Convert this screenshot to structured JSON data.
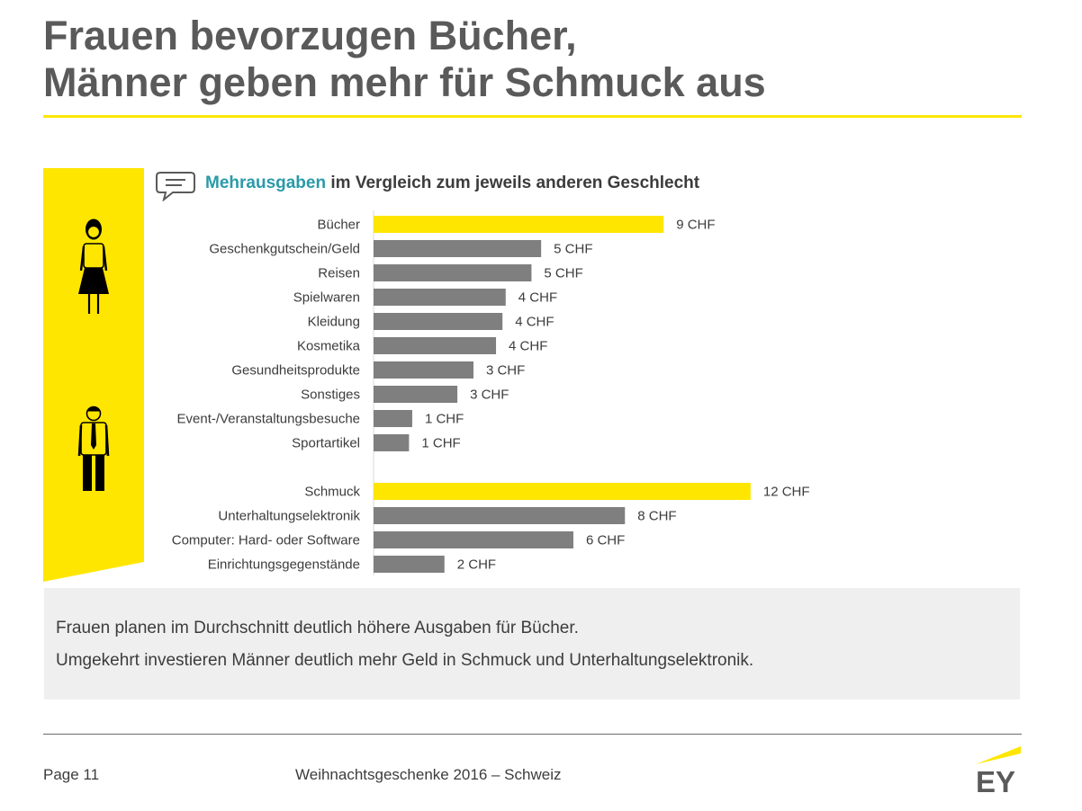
{
  "slide": {
    "title_line1": "Frauen bevorzugen Bücher,",
    "title_line2": "Männer geben mehr für Schmuck aus",
    "chart_heading_accent": "Mehrausgaben",
    "chart_heading_rest": " im Vergleich zum jeweils anderen Geschlecht",
    "note_line1": "Frauen planen im Durchschnitt deutlich höhere Ausgaben für Bücher.",
    "note_line2": "Umgekehrt investieren Männer deutlich mehr Geld in Schmuck und Unterhaltungselektronik.",
    "page_label": "Page 11",
    "footer_title": "Weihnachtsgeschenke 2016 – Schweiz",
    "logo_text": "EY"
  },
  "colors": {
    "accent_yellow": "#ffe600",
    "bar_grey": "#7f7f7f",
    "heading_accent": "#2a9aa8"
  },
  "icons": [
    "speech-bubble-icon",
    "woman-icon",
    "man-icon",
    "ey-logo"
  ],
  "chart_data": {
    "type": "bar",
    "orientation": "horizontal",
    "unit_suffix": " CHF",
    "groups": [
      {
        "gender": "female",
        "categories": [
          "Bücher",
          "Geschenkgutschein/Geld",
          "Reisen",
          "Spielwaren",
          "Kleidung",
          "Kosmetika",
          "Gesundheitsprodukte",
          "Sonstiges",
          "Event-/Veranstaltungsbesuche",
          "Sportartikel"
        ],
        "values": [
          9,
          5.2,
          4.9,
          4.1,
          4.0,
          3.8,
          3.1,
          2.6,
          1.2,
          1.1
        ],
        "value_labels": [
          "9 CHF",
          "5 CHF",
          "5 CHF",
          "4 CHF",
          "4 CHF",
          "4 CHF",
          "3 CHF",
          "3 CHF",
          "1 CHF",
          "1 CHF"
        ],
        "highlight_index": 0
      },
      {
        "gender": "male",
        "categories": [
          "Schmuck",
          "Unterhaltungselektronik",
          "Computer: Hard- oder Software",
          "Einrichtungsgegenstände"
        ],
        "values": [
          11.7,
          7.8,
          6.2,
          2.2
        ],
        "value_labels": [
          "12 CHF",
          "8 CHF",
          "6 CHF",
          "2 CHF"
        ],
        "highlight_index": 0
      }
    ]
  }
}
